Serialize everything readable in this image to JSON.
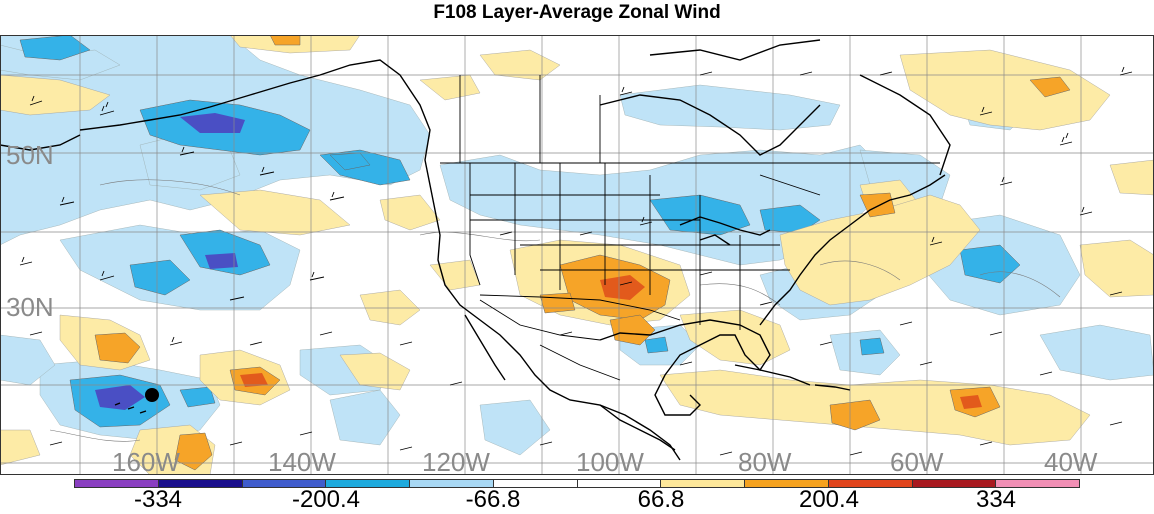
{
  "title": "F108 Layer-Average Zonal Wind",
  "latitude_labels": [
    "50N",
    "30N"
  ],
  "longitude_labels": [
    "160W",
    "140W",
    "120W",
    "100W",
    "80W",
    "60W",
    "40W"
  ],
  "colorbar": {
    "colors": [
      "#8a3fc1",
      "#1a0f8c",
      "#3f5ccc",
      "#1eaadd",
      "#a8d8f4",
      "#ffffff",
      "#ffffff",
      "#fde79a",
      "#f5a21f",
      "#e0441c",
      "#a8191f",
      "#f18fb5"
    ],
    "tick_labels": [
      "-334",
      "-200.4",
      "-66.8",
      "66.8",
      "200.4",
      "334"
    ]
  },
  "colors": {
    "negative_light": "#bfe3f7",
    "negative_mid": "#34b2e8",
    "negative_dark": "#4a4fc4",
    "positive_light": "#fdeba6",
    "positive_mid": "#f6a428",
    "positive_dark": "#e25a1c"
  }
}
